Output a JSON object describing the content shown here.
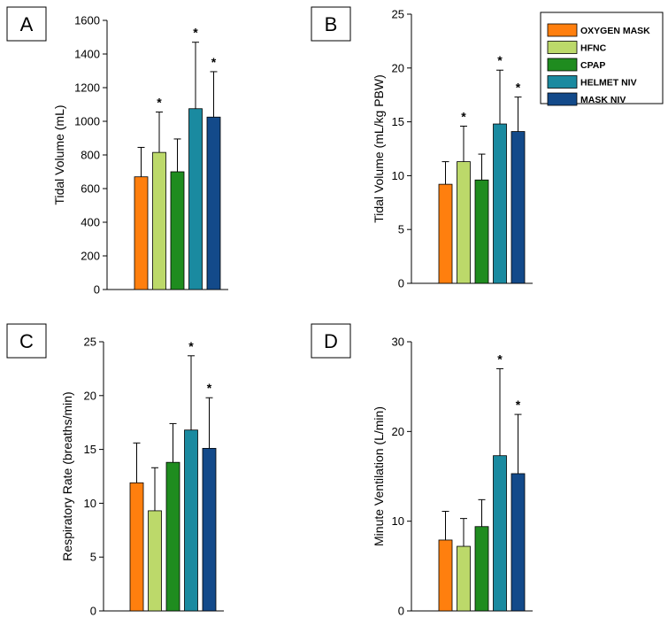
{
  "colors": {
    "oxygen_mask": "#ff7f0e",
    "hfnc": "#bcd96a",
    "cpap": "#1f8c1f",
    "helmet_niv": "#1a8aa0",
    "mask_niv": "#134a8a",
    "axis": "#000000"
  },
  "legend": [
    {
      "label": "OXYGEN MASK",
      "color_key": "oxygen_mask"
    },
    {
      "label": "HFNC",
      "color_key": "hfnc"
    },
    {
      "label": "CPAP",
      "color_key": "cpap"
    },
    {
      "label": "HELMET NIV",
      "color_key": "helmet_niv"
    },
    {
      "label": "MASK NIV",
      "color_key": "mask_niv"
    }
  ],
  "chart_data": [
    {
      "panel": "A",
      "type": "bar",
      "ylabel": "Tidal Volume (mL)",
      "ylim": [
        0,
        1600
      ],
      "yticks": [
        0,
        200,
        400,
        600,
        800,
        1000,
        1200,
        1400,
        1600
      ],
      "categories": [
        "OXYGEN MASK",
        "HFNC",
        "CPAP",
        "HELMET NIV",
        "MASK NIV"
      ],
      "values": [
        670,
        815,
        700,
        1075,
        1025
      ],
      "error_upper": [
        845,
        1055,
        895,
        1470,
        1295
      ],
      "significant": [
        false,
        true,
        false,
        true,
        true
      ],
      "marker": "*"
    },
    {
      "panel": "B",
      "type": "bar",
      "ylabel": "Tidal Volume (mL/kg  PBW)",
      "ylim": [
        0,
        25
      ],
      "yticks": [
        0,
        5,
        10,
        15,
        20,
        25
      ],
      "categories": [
        "OXYGEN MASK",
        "HFNC",
        "CPAP",
        "HELMET NIV",
        "MASK NIV"
      ],
      "values": [
        9.2,
        11.3,
        9.6,
        14.8,
        14.1
      ],
      "error_upper": [
        11.3,
        14.6,
        12.0,
        19.8,
        17.3
      ],
      "significant": [
        false,
        true,
        false,
        true,
        true
      ],
      "marker": "*"
    },
    {
      "panel": "C",
      "type": "bar",
      "ylabel": "Respiratory  Rate (breaths/min)",
      "ylim": [
        0,
        25
      ],
      "yticks": [
        0,
        5,
        10,
        15,
        20,
        25
      ],
      "categories": [
        "OXYGEN MASK",
        "HFNC",
        "CPAP",
        "HELMET NIV",
        "MASK NIV"
      ],
      "values": [
        11.9,
        9.3,
        13.8,
        16.8,
        15.1
      ],
      "error_upper": [
        15.6,
        13.3,
        17.4,
        23.7,
        19.8
      ],
      "significant": [
        false,
        false,
        false,
        true,
        true
      ],
      "marker": "*"
    },
    {
      "panel": "D",
      "type": "bar",
      "ylabel": "Minute Ventilation (L/min)",
      "ylim": [
        0,
        30
      ],
      "yticks": [
        0,
        10,
        20,
        30
      ],
      "categories": [
        "OXYGEN MASK",
        "HFNC",
        "CPAP",
        "HELMET NIV",
        "MASK NIV"
      ],
      "values": [
        7.9,
        7.2,
        9.4,
        17.3,
        15.3
      ],
      "error_upper": [
        11.1,
        10.3,
        12.4,
        27.0,
        21.9
      ],
      "significant": [
        false,
        false,
        false,
        true,
        true
      ],
      "marker": "*"
    }
  ]
}
